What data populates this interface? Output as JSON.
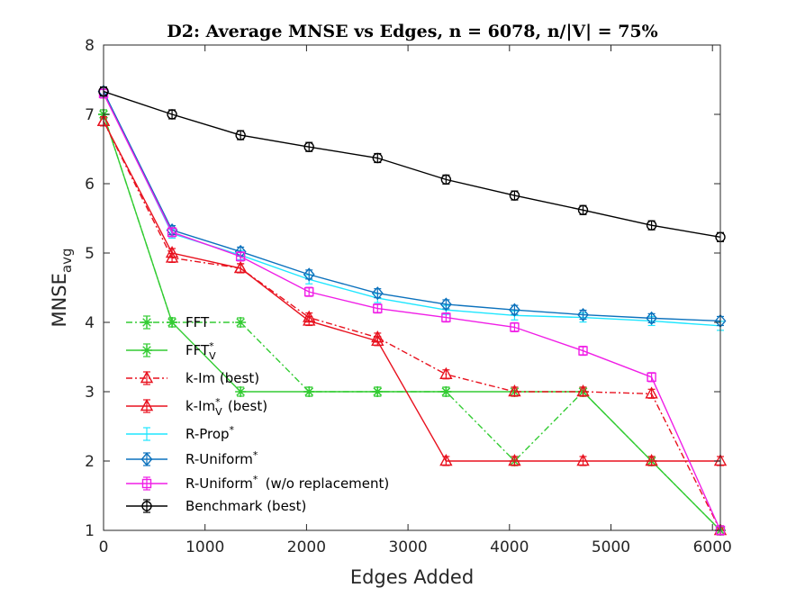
{
  "chart_data": {
    "type": "line",
    "title": "D2: Average MNSE vs Edges, n = 6078, n/|V| = 75%",
    "xlabel": "Edges Added",
    "ylabel_main": "MNSE",
    "ylabel_sub": "avg",
    "xlim": [
      0,
      6078
    ],
    "ylim": [
      1,
      8
    ],
    "xticks": [
      0,
      1000,
      2000,
      3000,
      4000,
      5000,
      6000
    ],
    "yticks": [
      1,
      2,
      3,
      4,
      5,
      6,
      7,
      8
    ],
    "grid": false,
    "legend_position": "lower-left",
    "x": [
      0,
      675,
      1350,
      2025,
      2700,
      3375,
      4050,
      4725,
      5400,
      6078
    ],
    "series": [
      {
        "name": "FFT",
        "legend_main": "FFT",
        "legend_sup": "",
        "legend_sub": "",
        "legend_tail": "",
        "color": "#33cc33",
        "dash": "dashdot",
        "marker": "star",
        "values": [
          7.0,
          4.0,
          4.0,
          3.0,
          3.0,
          3.0,
          2.0,
          3.0,
          2.0,
          1.0
        ]
      },
      {
        "name": "FFT*V",
        "legend_main": "FFT",
        "legend_sup": "*",
        "legend_sub": "V",
        "legend_tail": "",
        "color": "#33cc33",
        "dash": "solid",
        "marker": "star",
        "values": [
          7.0,
          4.0,
          3.0,
          3.0,
          3.0,
          3.0,
          3.0,
          3.0,
          2.0,
          1.0
        ]
      },
      {
        "name": "k-Im (best)",
        "legend_main": "k-Im (best)",
        "legend_sup": "",
        "legend_sub": "",
        "legend_tail": "",
        "color": "#e8111e",
        "dash": "dashdot",
        "marker": "triangle",
        "values": [
          6.9,
          4.93,
          4.78,
          4.07,
          3.78,
          3.25,
          3.0,
          3.0,
          2.97,
          1.0
        ]
      },
      {
        "name": "k-Im*V (best)",
        "legend_main": "k-Im",
        "legend_sup": "*",
        "legend_sub": "V",
        "legend_tail": " (best)",
        "color": "#e8111e",
        "dash": "solid",
        "marker": "triangle",
        "values": [
          6.9,
          5.0,
          4.78,
          4.02,
          3.73,
          2.0,
          2.0,
          2.0,
          2.0,
          2.0
        ]
      },
      {
        "name": "R-Prop*",
        "legend_main": "R-Prop",
        "legend_sup": "*",
        "legend_sub": "",
        "legend_tail": "",
        "color": "#1ee6ff",
        "dash": "solid",
        "marker": "none",
        "values": [
          7.33,
          5.28,
          4.97,
          4.62,
          4.35,
          4.18,
          4.1,
          4.07,
          4.02,
          3.95
        ]
      },
      {
        "name": "R-Uniform*",
        "legend_main": "R-Uniform",
        "legend_sup": "*",
        "legend_sub": "",
        "legend_tail": "",
        "color": "#0c72bd",
        "dash": "solid",
        "marker": "diamond",
        "values": [
          7.33,
          5.33,
          5.02,
          4.69,
          4.42,
          4.26,
          4.18,
          4.11,
          4.06,
          4.02
        ]
      },
      {
        "name": "R-Uniform* (w/o replacement)",
        "legend_main": "R-Uniform",
        "legend_sup": "*",
        "legend_sub": "",
        "legend_tail": " (w/o replacement)",
        "color": "#f01ee6",
        "dash": "solid",
        "marker": "square",
        "values": [
          7.3,
          5.3,
          4.95,
          4.44,
          4.2,
          4.07,
          3.93,
          3.59,
          3.21,
          1.0
        ]
      },
      {
        "name": "Benchmark (best)",
        "legend_main": "Benchmark (best)",
        "legend_sup": "",
        "legend_sub": "",
        "legend_tail": "",
        "color": "#000000",
        "dash": "solid",
        "marker": "circle",
        "values": [
          7.33,
          7.0,
          6.7,
          6.53,
          6.37,
          6.06,
          5.83,
          5.62,
          5.4,
          5.23
        ]
      }
    ]
  }
}
